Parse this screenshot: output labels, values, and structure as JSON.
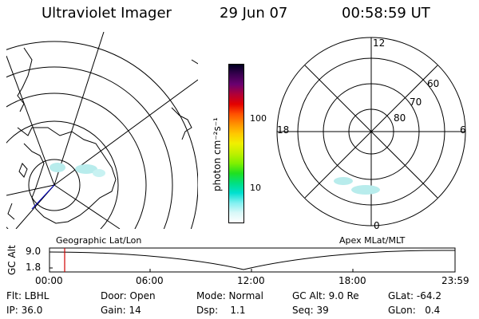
{
  "header": {
    "instrument": "Ultraviolet Imager",
    "date": "29 Jun 07",
    "time": "00:58:59 UT"
  },
  "left_map": {
    "caption": "Geographic Lat/Lon"
  },
  "colorbar": {
    "units_label": "photon cm⁻²s⁻¹",
    "ticks": [
      "100",
      "10"
    ],
    "colors": [
      "#000020",
      "#3a0050",
      "#6a0070",
      "#b00038",
      "#e40000",
      "#ff5000",
      "#ff9000",
      "#ffc800",
      "#f0f000",
      "#c0f000",
      "#80f000",
      "#20e020",
      "#00e080",
      "#00e0d0",
      "#80f0f0",
      "#d8f8f8",
      "#ffffff"
    ]
  },
  "right_map": {
    "caption": "Apex MLat/MLT",
    "mlt_labels": {
      "top": "12",
      "left": "18",
      "right": "6",
      "bottom": "0"
    },
    "lat_labels": [
      "60",
      "70",
      "80"
    ]
  },
  "timeline": {
    "ylabel": "GC Alt",
    "y_ticks": [
      "9.0",
      "1.8"
    ],
    "x_ticks": [
      "00:00",
      "06:00",
      "12:00",
      "18:00",
      "23:59"
    ],
    "marker_color": "#d00000"
  },
  "footer": {
    "rows": [
      [
        "Flt: LBHL",
        "Door: Open",
        "Mode: Normal",
        "GC Alt: 9.0 Re",
        "GLat: -64.2"
      ],
      [
        "IP: 36.0",
        "Gain: 14",
        "Dsp:    1.1",
        "Seq: 39",
        "GLon:   0.4"
      ]
    ]
  }
}
